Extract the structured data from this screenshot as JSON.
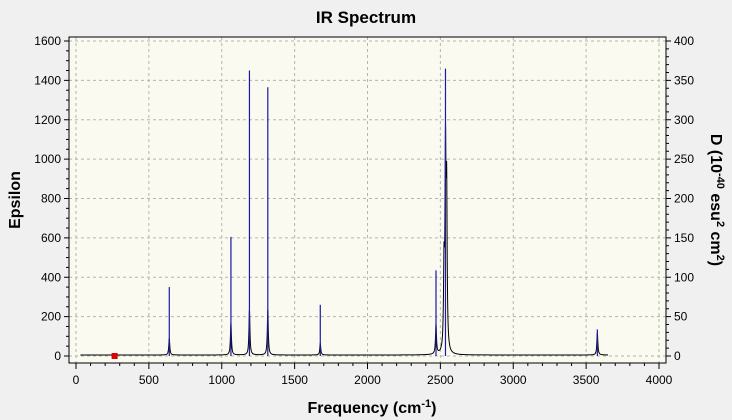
{
  "chart_data": {
    "type": "line",
    "title": "IR Spectrum",
    "xlabel": "Frequency (cm",
    "xlabel_sup": "-1",
    "xlabel_end": ")",
    "ylabel": "Epsilon",
    "y2label_parts": [
      "D (10",
      "-40",
      " esu",
      "2",
      " cm",
      "2",
      ")"
    ],
    "xlim": [
      0,
      4000
    ],
    "ylim": [
      0,
      1600
    ],
    "y2lim": [
      0,
      400
    ],
    "x_ticks": [
      0,
      500,
      1000,
      1500,
      2000,
      2500,
      3000,
      3500,
      4000
    ],
    "y_ticks": [
      0,
      200,
      400,
      600,
      800,
      1000,
      1200,
      1400,
      1600
    ],
    "y2_ticks": [
      0,
      50,
      100,
      150,
      200,
      250,
      300,
      350,
      400
    ],
    "grid": true,
    "colors": {
      "plot_bg": "#fafaf0",
      "frame_bg": "#f0f0f0",
      "spectrum": "#000000",
      "sticks": "#1a1aa6",
      "grid": "#b4b4b4",
      "marker": "#dd0000"
    },
    "marker": {
      "x": 265,
      "y": 0
    },
    "series": [
      {
        "kind": "spectrum-curve",
        "peaks": [
          {
            "x": 640,
            "y": 85
          },
          {
            "x": 1063,
            "y": 165
          },
          {
            "x": 1190,
            "y": 230
          },
          {
            "x": 1316,
            "y": 230
          },
          {
            "x": 1676,
            "y": 60
          },
          {
            "x": 2470,
            "y": 150
          },
          {
            "x": 2525,
            "y": 400
          },
          {
            "x": 2535,
            "y": 970
          },
          {
            "x": 2543,
            "y": 770
          },
          {
            "x": 3577,
            "y": 115
          }
        ],
        "baseline": 5
      },
      {
        "kind": "sticks",
        "values": [
          {
            "x": 640,
            "y": 350
          },
          {
            "x": 1063,
            "y": 605
          },
          {
            "x": 1190,
            "y": 1450
          },
          {
            "x": 1316,
            "y": 1365
          },
          {
            "x": 1676,
            "y": 260
          },
          {
            "x": 2470,
            "y": 435
          },
          {
            "x": 2535,
            "y": 1460
          },
          {
            "x": 3577,
            "y": 135
          }
        ]
      }
    ]
  }
}
